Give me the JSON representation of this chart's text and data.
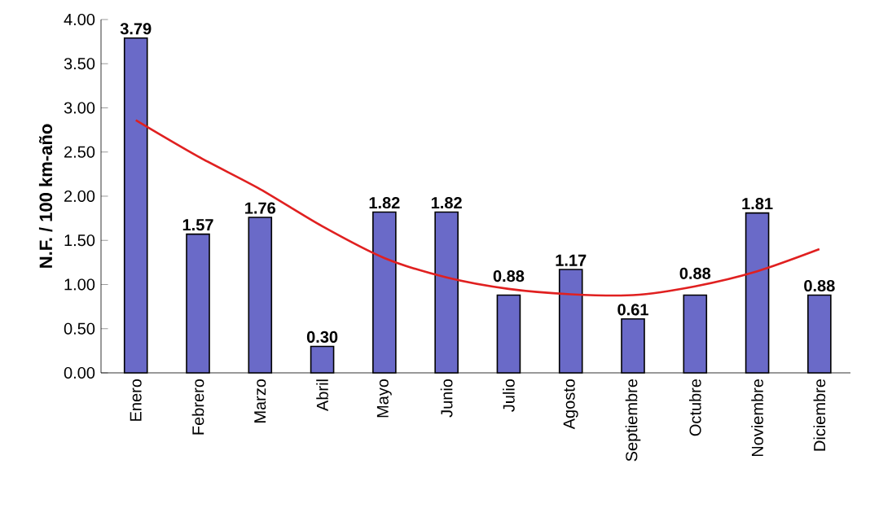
{
  "chart_data": {
    "type": "bar",
    "ylabel": "N.F. / 100 km-año",
    "categories": [
      "Enero",
      "Febrero",
      "Marzo",
      "Abril",
      "Mayo",
      "Junio",
      "Julio",
      "Agosto",
      "Septiembre",
      "Octubre",
      "Noviembre",
      "Diciembre"
    ],
    "series": [
      {
        "color": "#6a6ac8",
        "values": [
          3.79,
          1.57,
          1.76,
          0.3,
          1.82,
          1.82,
          0.88,
          1.17,
          0.61,
          0.88,
          1.81,
          0.88
        ],
        "value_labels": [
          "3.79",
          "1.57",
          "1.76",
          "0.30",
          "1.82",
          "1.82",
          "0.88",
          "1.17",
          "0.61",
          "0.88",
          "1.81",
          "0.88"
        ]
      },
      {
        "type": "line",
        "color": "#e02020",
        "values": [
          2.86,
          2.45,
          2.08,
          1.66,
          1.3,
          1.08,
          0.95,
          0.89,
          0.88,
          0.98,
          1.15,
          1.4
        ]
      }
    ],
    "ylim": [
      0,
      4
    ],
    "yticks": [
      {
        "value": 0,
        "label": "0.00"
      },
      {
        "value": 0.5,
        "label": "0.50"
      },
      {
        "value": 1,
        "label": "1.00"
      },
      {
        "value": 1.5,
        "label": "1.50"
      },
      {
        "value": 2,
        "label": "2.00"
      },
      {
        "value": 2.5,
        "label": "2.50"
      },
      {
        "value": 3,
        "label": "3.00"
      },
      {
        "value": 3.5,
        "label": "3.50"
      },
      {
        "value": 4,
        "label": "4.00"
      }
    ],
    "grid": false
  }
}
